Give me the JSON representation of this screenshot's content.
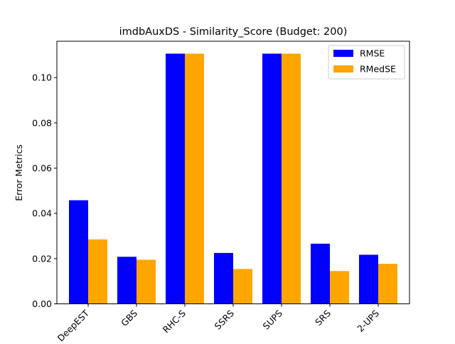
{
  "chart_data": {
    "type": "bar",
    "title": "imdbAuxDS - Similarity_Score (Budget: 200)",
    "xlabel": "",
    "ylabel": "Error Metrics",
    "categories": [
      "DeepEST",
      "GBS",
      "RHC-S",
      "SSRS",
      "SUPS",
      "SRS",
      "2-UPS"
    ],
    "series": [
      {
        "name": "RMSE",
        "color": "#0000ff",
        "values": [
          0.0458,
          0.0208,
          0.1106,
          0.0225,
          0.1106,
          0.0266,
          0.0217
        ]
      },
      {
        "name": "RMedSE",
        "color": "#ffa500",
        "values": [
          0.0285,
          0.0195,
          0.1106,
          0.0154,
          0.1106,
          0.0145,
          0.0177
        ]
      }
    ],
    "ylim": [
      0,
      0.1161
    ],
    "yticks": [
      "0.00",
      "0.02",
      "0.04",
      "0.06",
      "0.08",
      "0.10"
    ],
    "legend_position": "top-right",
    "grid": false
  }
}
